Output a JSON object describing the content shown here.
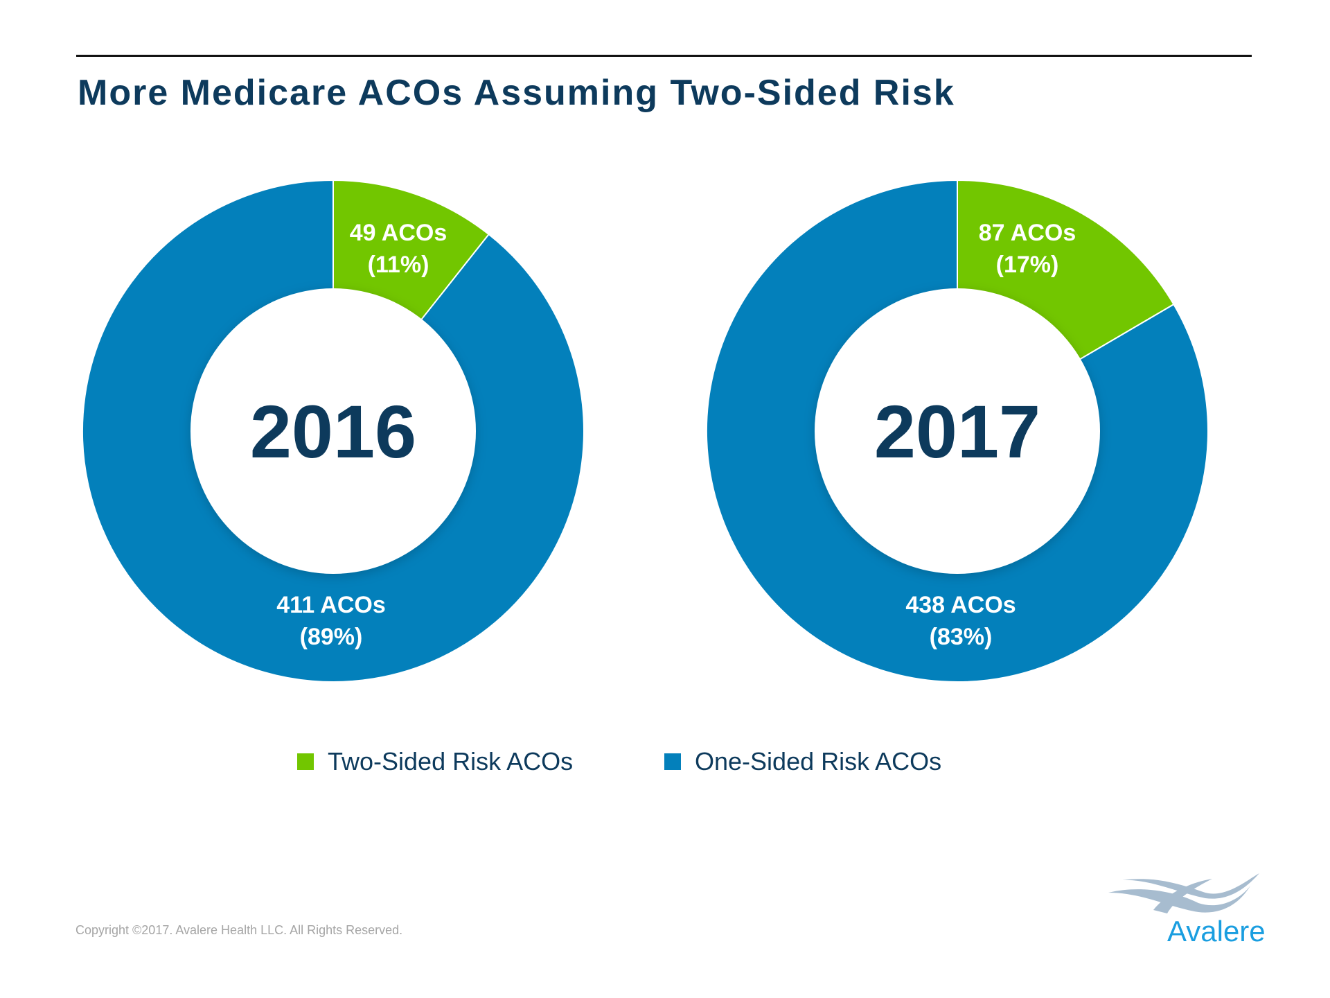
{
  "title": "More Medicare ACOs Assuming Two-Sided Risk",
  "chart_data": [
    {
      "type": "pie",
      "variant": "donut",
      "center_label": "2016",
      "categories": [
        "Two-Sided Risk ACOs",
        "One-Sided Risk ACOs"
      ],
      "values": [
        49,
        411
      ],
      "percents": [
        11,
        89
      ],
      "data_labels": [
        [
          "49 ACOs",
          "(11%)"
        ],
        [
          "411 ACOs",
          "(89%)"
        ]
      ]
    },
    {
      "type": "pie",
      "variant": "donut",
      "center_label": "2017",
      "categories": [
        "Two-Sided Risk ACOs",
        "One-Sided Risk ACOs"
      ],
      "values": [
        87,
        438
      ],
      "percents": [
        17,
        83
      ],
      "data_labels": [
        [
          "87 ACOs",
          "(17%)"
        ],
        [
          "438 ACOs",
          "(83%)"
        ]
      ]
    }
  ],
  "legend": [
    {
      "label": "Two-Sided Risk ACOs",
      "color": "#72c600"
    },
    {
      "label": "One-Sided Risk ACOs",
      "color": "#0380bb"
    }
  ],
  "colors": {
    "title": "#0d3a5c",
    "green": "#72c600",
    "blue": "#0380bb"
  },
  "footer": {
    "copyright": "Copyright ©2017. Avalere Health LLC. All Rights Reserved."
  },
  "logo": {
    "text": "Avalere"
  }
}
